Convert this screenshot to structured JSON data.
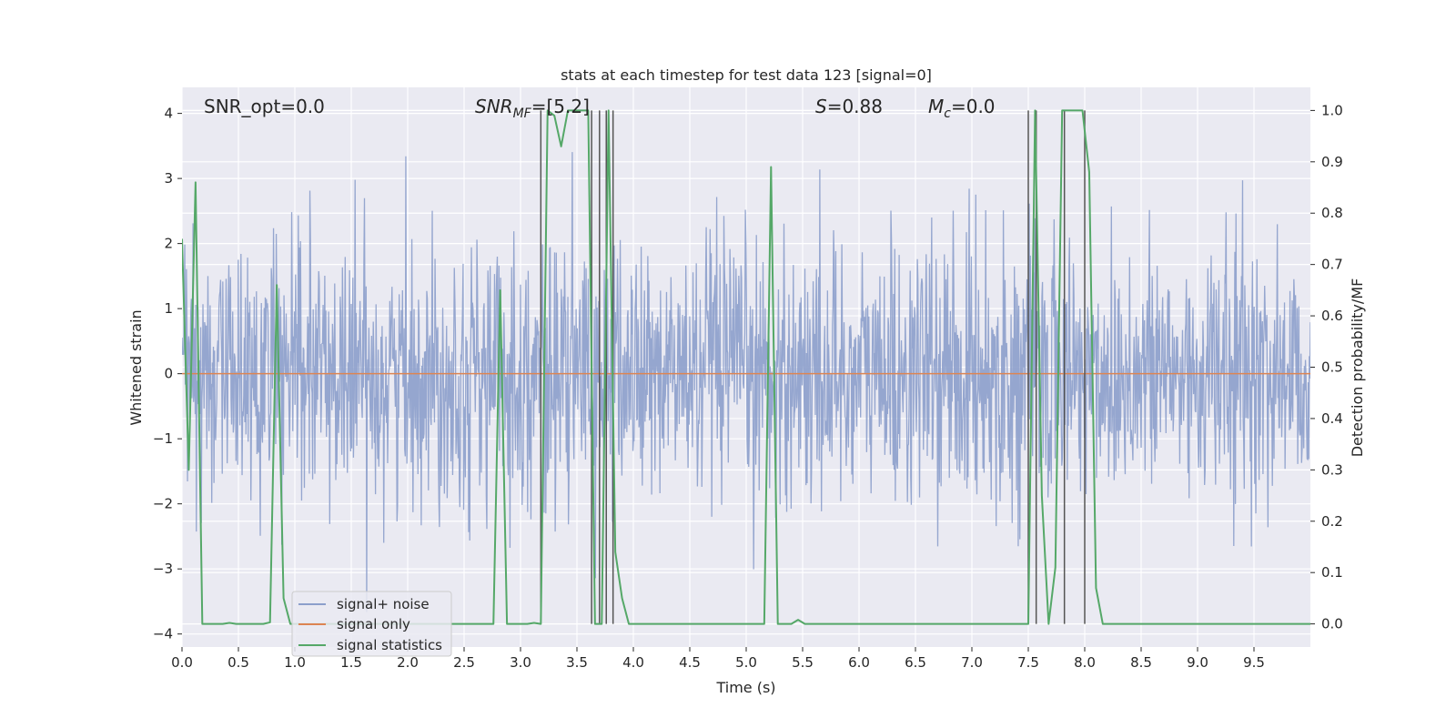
{
  "chart_data": {
    "type": "line",
    "title": "stats at each timestep for test data 123 [signal=0]",
    "xlabel": "Time (s)",
    "ylabel": "Whitened strain",
    "y2label": "Detection probability/MF",
    "xlim": [
      0.0,
      10.0
    ],
    "ylim": [
      -4.2,
      4.4
    ],
    "y2lim": [
      -0.045,
      1.045
    ],
    "x_ticks": [
      0.0,
      0.5,
      1.0,
      1.5,
      2.0,
      2.5,
      3.0,
      3.5,
      4.0,
      4.5,
      5.0,
      5.5,
      6.0,
      6.5,
      7.0,
      7.5,
      8.0,
      8.5,
      9.0,
      9.5
    ],
    "y_ticks": [
      -4,
      -3,
      -2,
      -1,
      0,
      1,
      2,
      3,
      4
    ],
    "y2_ticks": [
      0.0,
      0.1,
      0.2,
      0.3,
      0.4,
      0.5,
      0.6,
      0.7,
      0.8,
      0.9,
      1.0
    ],
    "annotations": {
      "snr_opt": "SNR_opt=0.0",
      "snr_mf_main": "SNR",
      "snr_mf_sub": "MF",
      "snr_mf_value": "=[5.2]",
      "s_main": "S",
      "s_value": "=0.88",
      "mc_main": "M",
      "mc_sub": "c",
      "mc_value": "=0.0"
    },
    "legend": {
      "position": "lower-left",
      "entries": [
        "signal+ noise",
        "signal only",
        "signal statistics"
      ]
    },
    "colors": {
      "noise": "#8c9fcb",
      "signal": "#dd8452",
      "stat": "#55a868",
      "vline": "#555555",
      "bg": "#eaeaf2",
      "grid": "#ffffff"
    },
    "noise": {
      "samples": 2048,
      "sigma": 1.0,
      "description_free": true
    },
    "series": [
      {
        "name": "signal+ noise",
        "axis": "left",
        "kind": "noise"
      },
      {
        "name": "signal only",
        "axis": "left",
        "x": [
          0.0,
          10.0
        ],
        "y": [
          0.0,
          0.0
        ]
      },
      {
        "name": "signal statistics",
        "axis": "right",
        "x": [
          0.0,
          0.06,
          0.12,
          0.18,
          0.24,
          0.3,
          0.36,
          0.42,
          0.48,
          0.54,
          0.6,
          0.66,
          0.72,
          0.78,
          0.84,
          0.9,
          0.96,
          1.02,
          1.5,
          2.0,
          2.5,
          2.7,
          2.76,
          2.82,
          2.88,
          3.06,
          3.12,
          3.18,
          3.24,
          3.3,
          3.36,
          3.42,
          3.48,
          3.54,
          3.6,
          3.66,
          3.72,
          3.78,
          3.84,
          3.9,
          3.96,
          4.5,
          5.0,
          5.1,
          5.16,
          5.22,
          5.28,
          5.34,
          5.4,
          5.46,
          5.52,
          6.0,
          7.0,
          7.44,
          7.5,
          7.56,
          7.62,
          7.68,
          7.74,
          7.8,
          7.86,
          7.92,
          7.98,
          8.04,
          8.1,
          8.16,
          8.22,
          8.5,
          9.0,
          9.5,
          10.0
        ],
        "y": [
          0.75,
          0.3,
          0.86,
          0.0,
          0.0,
          0.0,
          0.0,
          0.002,
          0.0,
          0.0,
          0.0,
          0.0,
          0.0,
          0.003,
          0.66,
          0.05,
          0.0,
          0.0,
          0.0,
          0.0,
          0.0,
          0.0,
          0.0,
          0.65,
          0.0,
          0.0,
          0.002,
          0.0,
          1.0,
          0.99,
          0.93,
          1.0,
          1.0,
          1.0,
          1.0,
          0.0,
          0.0,
          1.0,
          0.14,
          0.05,
          0.0,
          0.0,
          0.0,
          0.0,
          0.0,
          0.89,
          0.0,
          0.0,
          0.0,
          0.008,
          0.0,
          0.0,
          0.0,
          0.0,
          0.0,
          1.0,
          0.25,
          0.0,
          0.11,
          1.0,
          1.0,
          1.0,
          1.0,
          0.88,
          0.07,
          0.0,
          0.0,
          0.0,
          0.0,
          0.0,
          0.0
        ]
      }
    ],
    "vlines_x": [
      3.18,
      3.63,
      3.7,
      3.76,
      3.82,
      7.5,
      7.57,
      7.82,
      8.0
    ],
    "vlines_range": [
      0.0,
      1.0
    ]
  }
}
